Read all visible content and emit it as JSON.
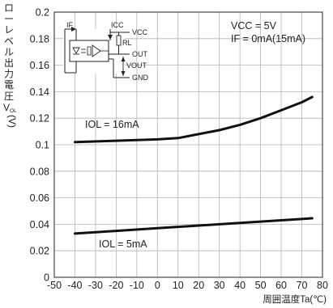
{
  "chart_data": {
    "type": "line",
    "title": "",
    "xlabel": "周囲温度Ta(℃)",
    "ylabel_lines": [
      "ロ",
      "ー",
      "レ",
      "ベ",
      "ル",
      "出",
      "力",
      "電",
      "圧"
    ],
    "ylabel_sym": "V",
    "ylabel_sub": "OL",
    "ylabel_unit": "(V)",
    "xlim": [
      -50,
      80
    ],
    "ylim": [
      0,
      0.2
    ],
    "xticks": [
      -50,
      -40,
      -30,
      -20,
      -10,
      0,
      10,
      20,
      30,
      40,
      50,
      60,
      70,
      80
    ],
    "xtick_labels": [
      "-50",
      "-40",
      "-30",
      "-20",
      "-10",
      "0",
      "10",
      "20",
      "30",
      "40",
      "50",
      "60",
      "70",
      "80"
    ],
    "yticks": [
      0,
      0.02,
      0.04,
      0.06,
      0.08,
      0.1,
      0.12,
      0.14,
      0.16,
      0.18,
      0.2
    ],
    "ytick_labels": [
      "0",
      "0.02",
      "0.04",
      "0.06",
      "0.08",
      "0.1",
      "0.12",
      "0.14",
      "0.16",
      "0.18",
      "0.2"
    ],
    "grid": true,
    "series": [
      {
        "name": "IOL = 16mA",
        "x": [
          -40,
          -20,
          0,
          10,
          20,
          30,
          40,
          50,
          60,
          70,
          75
        ],
        "y": [
          0.102,
          0.103,
          0.104,
          0.105,
          0.108,
          0.111,
          0.115,
          0.12,
          0.126,
          0.132,
          0.136
        ]
      },
      {
        "name": "IOL = 5mA",
        "x": [
          -40,
          -20,
          0,
          20,
          40,
          60,
          75
        ],
        "y": [
          0.033,
          0.035,
          0.037,
          0.039,
          0.041,
          0.043,
          0.0445
        ]
      }
    ],
    "annotations": {
      "cond1": "VCC = 5V",
      "cond2": "IF = 0mA(15mA)",
      "label16": "IOL = 16mA",
      "label5": "IOL = 5mA"
    },
    "inset": {
      "if": "IF",
      "icc": "ICC",
      "vcc": "VCC",
      "rl": "RL",
      "out": "OUT",
      "vout": "VOUT",
      "gnd": "GND"
    }
  }
}
